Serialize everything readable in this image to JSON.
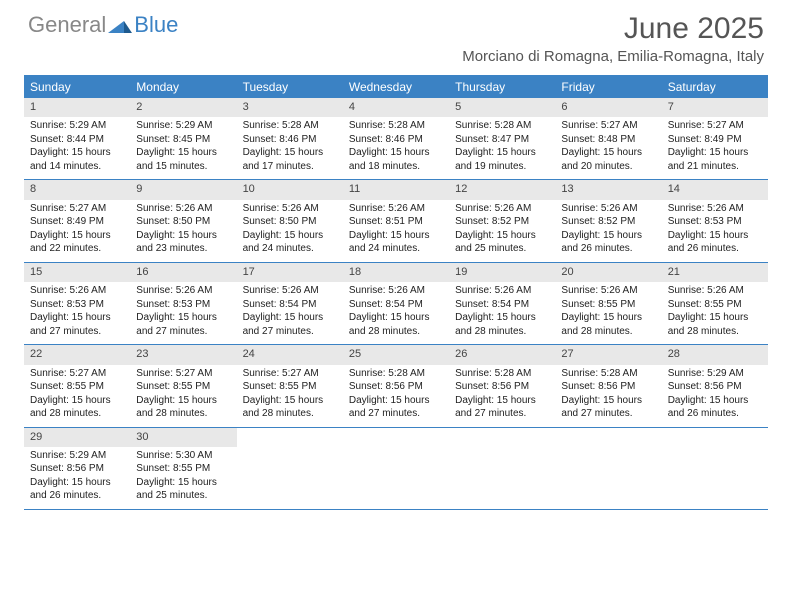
{
  "brand": {
    "general": "General",
    "blue": "Blue"
  },
  "title": "June 2025",
  "location": "Morciano di Romagna, Emilia-Romagna, Italy",
  "colors": {
    "accent": "#3b82c4",
    "header_bg": "#3b82c4",
    "header_text": "#ffffff",
    "daynum_bg": "#e8e8e8",
    "text": "#333333",
    "title_color": "#555555"
  },
  "weekdays": [
    "Sunday",
    "Monday",
    "Tuesday",
    "Wednesday",
    "Thursday",
    "Friday",
    "Saturday"
  ],
  "days": [
    {
      "n": 1,
      "sr": "5:29 AM",
      "ss": "8:44 PM",
      "dl": "15 hours and 14 minutes."
    },
    {
      "n": 2,
      "sr": "5:29 AM",
      "ss": "8:45 PM",
      "dl": "15 hours and 15 minutes."
    },
    {
      "n": 3,
      "sr": "5:28 AM",
      "ss": "8:46 PM",
      "dl": "15 hours and 17 minutes."
    },
    {
      "n": 4,
      "sr": "5:28 AM",
      "ss": "8:46 PM",
      "dl": "15 hours and 18 minutes."
    },
    {
      "n": 5,
      "sr": "5:28 AM",
      "ss": "8:47 PM",
      "dl": "15 hours and 19 minutes."
    },
    {
      "n": 6,
      "sr": "5:27 AM",
      "ss": "8:48 PM",
      "dl": "15 hours and 20 minutes."
    },
    {
      "n": 7,
      "sr": "5:27 AM",
      "ss": "8:49 PM",
      "dl": "15 hours and 21 minutes."
    },
    {
      "n": 8,
      "sr": "5:27 AM",
      "ss": "8:49 PM",
      "dl": "15 hours and 22 minutes."
    },
    {
      "n": 9,
      "sr": "5:26 AM",
      "ss": "8:50 PM",
      "dl": "15 hours and 23 minutes."
    },
    {
      "n": 10,
      "sr": "5:26 AM",
      "ss": "8:50 PM",
      "dl": "15 hours and 24 minutes."
    },
    {
      "n": 11,
      "sr": "5:26 AM",
      "ss": "8:51 PM",
      "dl": "15 hours and 24 minutes."
    },
    {
      "n": 12,
      "sr": "5:26 AM",
      "ss": "8:52 PM",
      "dl": "15 hours and 25 minutes."
    },
    {
      "n": 13,
      "sr": "5:26 AM",
      "ss": "8:52 PM",
      "dl": "15 hours and 26 minutes."
    },
    {
      "n": 14,
      "sr": "5:26 AM",
      "ss": "8:53 PM",
      "dl": "15 hours and 26 minutes."
    },
    {
      "n": 15,
      "sr": "5:26 AM",
      "ss": "8:53 PM",
      "dl": "15 hours and 27 minutes."
    },
    {
      "n": 16,
      "sr": "5:26 AM",
      "ss": "8:53 PM",
      "dl": "15 hours and 27 minutes."
    },
    {
      "n": 17,
      "sr": "5:26 AM",
      "ss": "8:54 PM",
      "dl": "15 hours and 27 minutes."
    },
    {
      "n": 18,
      "sr": "5:26 AM",
      "ss": "8:54 PM",
      "dl": "15 hours and 28 minutes."
    },
    {
      "n": 19,
      "sr": "5:26 AM",
      "ss": "8:54 PM",
      "dl": "15 hours and 28 minutes."
    },
    {
      "n": 20,
      "sr": "5:26 AM",
      "ss": "8:55 PM",
      "dl": "15 hours and 28 minutes."
    },
    {
      "n": 21,
      "sr": "5:26 AM",
      "ss": "8:55 PM",
      "dl": "15 hours and 28 minutes."
    },
    {
      "n": 22,
      "sr": "5:27 AM",
      "ss": "8:55 PM",
      "dl": "15 hours and 28 minutes."
    },
    {
      "n": 23,
      "sr": "5:27 AM",
      "ss": "8:55 PM",
      "dl": "15 hours and 28 minutes."
    },
    {
      "n": 24,
      "sr": "5:27 AM",
      "ss": "8:55 PM",
      "dl": "15 hours and 28 minutes."
    },
    {
      "n": 25,
      "sr": "5:28 AM",
      "ss": "8:56 PM",
      "dl": "15 hours and 27 minutes."
    },
    {
      "n": 26,
      "sr": "5:28 AM",
      "ss": "8:56 PM",
      "dl": "15 hours and 27 minutes."
    },
    {
      "n": 27,
      "sr": "5:28 AM",
      "ss": "8:56 PM",
      "dl": "15 hours and 27 minutes."
    },
    {
      "n": 28,
      "sr": "5:29 AM",
      "ss": "8:56 PM",
      "dl": "15 hours and 26 minutes."
    },
    {
      "n": 29,
      "sr": "5:29 AM",
      "ss": "8:56 PM",
      "dl": "15 hours and 26 minutes."
    },
    {
      "n": 30,
      "sr": "5:30 AM",
      "ss": "8:55 PM",
      "dl": "15 hours and 25 minutes."
    }
  ],
  "labels": {
    "sunrise": "Sunrise:",
    "sunset": "Sunset:",
    "daylight": "Daylight:"
  }
}
